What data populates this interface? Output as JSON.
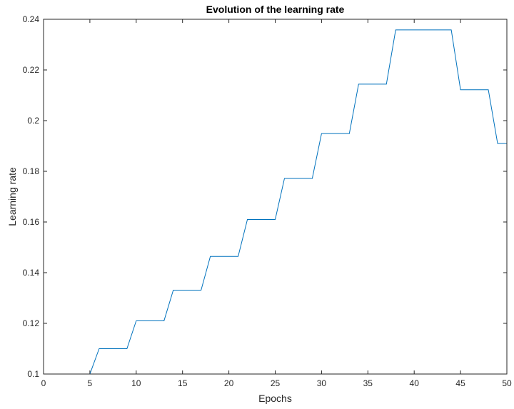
{
  "chart_data": {
    "type": "line",
    "title": "Evolution of the learning rate",
    "xlabel": "Epochs",
    "ylabel": "Learning rate",
    "xlim": [
      0,
      50
    ],
    "ylim": [
      0.1,
      0.24
    ],
    "xticks": [
      0,
      5,
      10,
      15,
      20,
      25,
      30,
      35,
      40,
      45,
      50
    ],
    "xtick_labels": [
      "0",
      "5",
      "10",
      "15",
      "20",
      "25",
      "30",
      "35",
      "40",
      "45",
      "50"
    ],
    "yticks": [
      0.1,
      0.12,
      0.14,
      0.16,
      0.18,
      0.2,
      0.22,
      0.24
    ],
    "ytick_labels": [
      "0.1",
      "0.12",
      "0.14",
      "0.16",
      "0.18",
      "0.2",
      "0.22",
      "0.24"
    ],
    "grid": false,
    "series": [
      {
        "color": "#0072BD",
        "x": [
          1,
          5,
          6,
          9,
          10,
          13,
          14,
          17,
          18,
          21,
          22,
          25,
          26,
          29,
          30,
          33,
          34,
          37,
          38,
          44,
          45,
          48,
          49,
          50
        ],
        "y": [
          0.1,
          0.1,
          0.11,
          0.11,
          0.121,
          0.121,
          0.1331,
          0.1331,
          0.1464,
          0.1464,
          0.161,
          0.161,
          0.1772,
          0.1772,
          0.1949,
          0.1949,
          0.2144,
          0.2144,
          0.2358,
          0.2358,
          0.2122,
          0.2122,
          0.191,
          0.191
        ]
      }
    ]
  }
}
